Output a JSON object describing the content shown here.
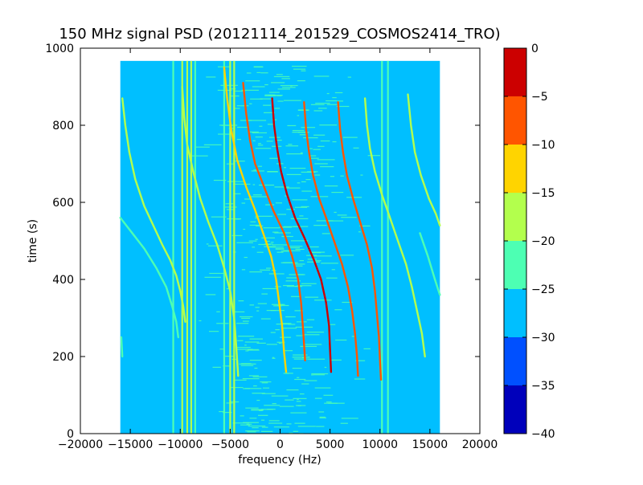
{
  "chart_data": {
    "type": "heatmap",
    "title": "150 MHz signal PSD (20121114_201529_COSMOS2414_TRO)",
    "xlabel": "frequency (Hz)",
    "ylabel": "time (s)",
    "xlim": [
      -20000,
      20000
    ],
    "ylim": [
      0,
      1000
    ],
    "xticks": [
      -20000,
      -15000,
      -10000,
      -5000,
      0,
      5000,
      10000,
      15000,
      20000
    ],
    "yticks": [
      0,
      200,
      400,
      600,
      800,
      1000
    ],
    "data_extent": {
      "x": [
        -16000,
        16000
      ],
      "y": [
        0,
        967
      ]
    },
    "background_level_range": [
      -30,
      -25
    ],
    "colorbar": {
      "levels": [
        -40,
        -35,
        -30,
        -25,
        -20,
        -15,
        -10,
        -5,
        0
      ],
      "colors": [
        "#0000bb",
        "#0050ff",
        "#00bfff",
        "#4dffb3",
        "#b3ff4d",
        "#ffd400",
        "#ff5500",
        "#cc0000"
      ],
      "ticks": [
        0,
        -5,
        -10,
        -15,
        -20,
        -25,
        -30,
        -35,
        -40
      ]
    },
    "vertical_lines": [
      {
        "x": -10700,
        "level": -22
      },
      {
        "x": -9800,
        "level": -20
      },
      {
        "x": -9300,
        "level": -18
      },
      {
        "x": -8900,
        "level": -17
      },
      {
        "x": -8500,
        "level": -22
      },
      {
        "x": -5600,
        "level": -22
      },
      {
        "x": -5000,
        "level": -18
      },
      {
        "x": -4600,
        "level": -20
      },
      {
        "x": 10200,
        "level": -22
      },
      {
        "x": 10800,
        "level": -22
      }
    ],
    "traces": [
      {
        "points": [
          [
            -16000,
            560
          ],
          [
            -14800,
            520
          ],
          [
            -13600,
            480
          ],
          [
            -12400,
            430
          ],
          [
            -11400,
            380
          ],
          [
            -10800,
            330
          ],
          [
            -10400,
            290
          ],
          [
            -10200,
            250
          ]
        ],
        "level": -22
      },
      {
        "points": [
          [
            -15800,
            870
          ],
          [
            -15500,
            800
          ],
          [
            -15100,
            730
          ],
          [
            -14500,
            660
          ],
          [
            -13600,
            590
          ],
          [
            -12700,
            540
          ],
          [
            -11800,
            490
          ],
          [
            -11000,
            450
          ],
          [
            -10400,
            410
          ],
          [
            -10000,
            370
          ],
          [
            -9700,
            330
          ],
          [
            -9500,
            290
          ]
        ],
        "level": -18
      },
      {
        "points": [
          [
            -9800,
            900
          ],
          [
            -9600,
            820
          ],
          [
            -9300,
            750
          ],
          [
            -8700,
            680
          ],
          [
            -8000,
            610
          ],
          [
            -7200,
            550
          ],
          [
            -6300,
            490
          ],
          [
            -5600,
            430
          ],
          [
            -5000,
            370
          ],
          [
            -4600,
            300
          ],
          [
            -4400,
            230
          ],
          [
            -4200,
            150
          ]
        ],
        "level": -18
      },
      {
        "points": [
          [
            -5600,
            950
          ],
          [
            -5300,
            870
          ],
          [
            -4900,
            790
          ],
          [
            -4300,
            710
          ],
          [
            -3400,
            640
          ],
          [
            -2500,
            580
          ],
          [
            -1700,
            520
          ],
          [
            -900,
            460
          ],
          [
            -400,
            400
          ],
          [
            -100,
            340
          ],
          [
            200,
            280
          ],
          [
            400,
            210
          ],
          [
            600,
            160
          ]
        ],
        "level": -12
      },
      {
        "points": [
          [
            -3700,
            910
          ],
          [
            -3400,
            830
          ],
          [
            -3000,
            760
          ],
          [
            -2500,
            700
          ],
          [
            -1600,
            640
          ],
          [
            -700,
            580
          ],
          [
            400,
            520
          ],
          [
            1200,
            460
          ],
          [
            1800,
            400
          ],
          [
            2100,
            340
          ],
          [
            2300,
            270
          ],
          [
            2500,
            190
          ]
        ],
        "level": -8
      },
      {
        "points": [
          [
            -800,
            870
          ],
          [
            -600,
            800
          ],
          [
            -300,
            740
          ],
          [
            100,
            680
          ],
          [
            700,
            620
          ],
          [
            1500,
            560
          ],
          [
            2400,
            510
          ],
          [
            3400,
            450
          ],
          [
            4100,
            400
          ],
          [
            4600,
            340
          ],
          [
            4900,
            280
          ],
          [
            5000,
            220
          ],
          [
            5100,
            160
          ]
        ],
        "level": -3
      },
      {
        "points": [
          [
            2400,
            860
          ],
          [
            2600,
            790
          ],
          [
            2900,
            730
          ],
          [
            3300,
            670
          ],
          [
            3900,
            610
          ],
          [
            4600,
            560
          ],
          [
            5400,
            500
          ],
          [
            6200,
            440
          ],
          [
            6800,
            380
          ],
          [
            7200,
            320
          ],
          [
            7500,
            260
          ],
          [
            7700,
            200
          ],
          [
            7800,
            150
          ]
        ],
        "level": -8
      },
      {
        "points": [
          [
            5800,
            860
          ],
          [
            6000,
            790
          ],
          [
            6300,
            730
          ],
          [
            6700,
            670
          ],
          [
            7300,
            610
          ],
          [
            8000,
            550
          ],
          [
            8700,
            490
          ],
          [
            9200,
            430
          ],
          [
            9500,
            370
          ],
          [
            9700,
            310
          ],
          [
            9900,
            250
          ],
          [
            10000,
            190
          ],
          [
            10100,
            140
          ]
        ],
        "level": -10
      },
      {
        "points": [
          [
            8500,
            870
          ],
          [
            8700,
            800
          ],
          [
            9000,
            740
          ],
          [
            9500,
            680
          ],
          [
            10200,
            620
          ],
          [
            11000,
            560
          ],
          [
            11800,
            500
          ],
          [
            12600,
            440
          ],
          [
            13200,
            380
          ],
          [
            13700,
            320
          ],
          [
            14200,
            260
          ],
          [
            14500,
            200
          ]
        ],
        "level": -18
      },
      {
        "points": [
          [
            12800,
            880
          ],
          [
            13100,
            800
          ],
          [
            13500,
            730
          ],
          [
            14100,
            670
          ],
          [
            14900,
            610
          ],
          [
            15600,
            570
          ],
          [
            16000,
            540
          ]
        ],
        "level": -20
      },
      {
        "points": [
          [
            14000,
            520
          ],
          [
            14800,
            460
          ],
          [
            15500,
            400
          ],
          [
            16000,
            360
          ]
        ],
        "level": -25
      },
      {
        "points": [
          [
            -15900,
            250
          ],
          [
            -15800,
            200
          ]
        ],
        "level": -25
      }
    ]
  }
}
